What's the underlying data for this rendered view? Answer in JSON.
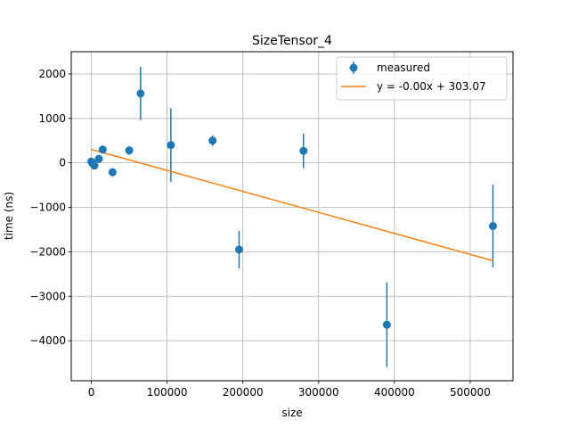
{
  "chart_data": {
    "type": "scatter",
    "title": "SizeTensor_4",
    "xlabel": "size",
    "ylabel": "time (ns)",
    "xlim": [
      -26500,
      556500
    ],
    "ylim": [
      -4900,
      2500
    ],
    "xticks": [
      0,
      100000,
      200000,
      300000,
      400000,
      500000
    ],
    "xtick_labels": [
      "0",
      "100000",
      "200000",
      "300000",
      "400000",
      "500000"
    ],
    "yticks": [
      -4000,
      -3000,
      -2000,
      -1000,
      0,
      1000,
      2000
    ],
    "ytick_labels": [
      "−4000",
      "−3000",
      "−2000",
      "−1000",
      "0",
      "1000",
      "2000"
    ],
    "grid": true,
    "legend_position": "top-right",
    "series": [
      {
        "name": "measured",
        "kind": "errorbar",
        "color": "#1f77b4",
        "x": [
          0,
          2000,
          4000,
          10000,
          15000,
          28000,
          50000,
          65000,
          105000,
          160000,
          195000,
          280000,
          390000,
          530000
        ],
        "y": [
          30,
          -20,
          -60,
          90,
          300,
          -210,
          280,
          1560,
          400,
          500,
          -1950,
          270,
          -3640,
          -1420
        ],
        "yerr": [
          50,
          50,
          50,
          50,
          80,
          60,
          100,
          600,
          830,
          120,
          420,
          390,
          950,
          930
        ]
      },
      {
        "name": "y = -0.00x + 303.07",
        "kind": "line",
        "color": "#ff7f0e",
        "x": [
          0,
          530000
        ],
        "y": [
          303.07,
          -2200
        ]
      }
    ]
  }
}
